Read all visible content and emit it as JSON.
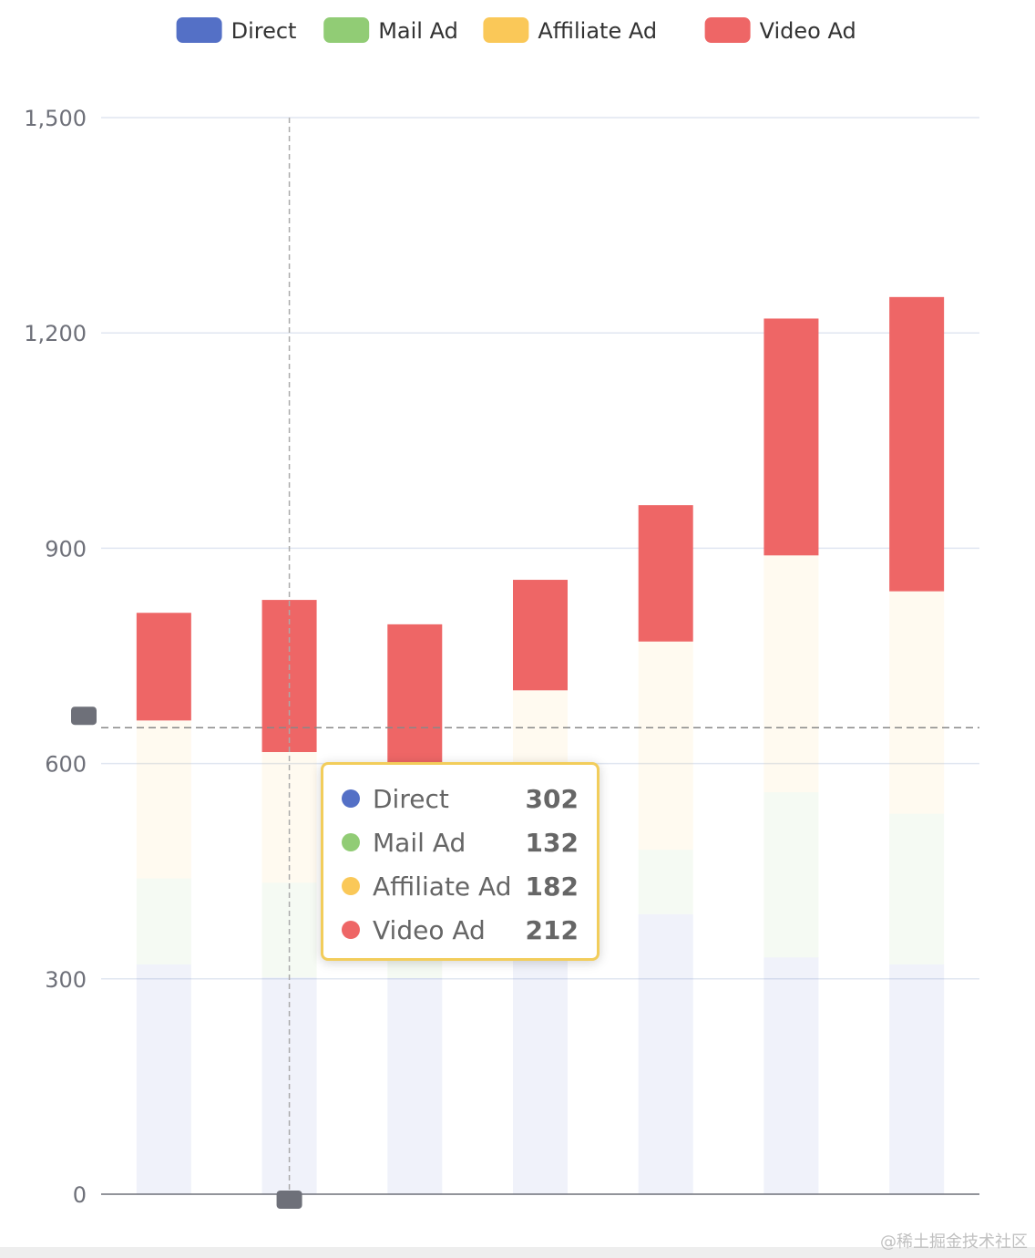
{
  "chart_data": {
    "type": "bar",
    "stacked": true,
    "categories": [
      "",
      "",
      "",
      "",
      "",
      "",
      ""
    ],
    "series": [
      {
        "name": "Direct",
        "color": "#5470c6",
        "values": [
          320,
          302,
          301,
          334,
          390,
          330,
          320
        ]
      },
      {
        "name": "Mail Ad",
        "color": "#91cc75",
        "values": [
          120,
          132,
          101,
          134,
          90,
          230,
          210
        ]
      },
      {
        "name": "Affiliate Ad",
        "color": "#fac858",
        "values": [
          220,
          182,
          191,
          234,
          290,
          330,
          310
        ]
      },
      {
        "name": "Video Ad",
        "color": "#ee6666",
        "values": [
          150,
          212,
          201,
          154,
          190,
          330,
          410
        ]
      }
    ],
    "ylim": [
      0,
      1500
    ],
    "yticks": [
      "0",
      "300",
      "600",
      "900",
      "1,200",
      "1,500"
    ],
    "ytick_values": [
      0,
      300,
      600,
      900,
      1200,
      1500
    ],
    "grid": true,
    "legend_position": "top-center",
    "emphasis": {
      "focus": "series",
      "highlighted_series": "Video Ad",
      "hovered_category_index": 1
    },
    "crosshair_y_value": 650
  },
  "tooltip": {
    "rows": [
      {
        "name": "Direct",
        "value": "302",
        "color": "#5470c6"
      },
      {
        "name": "Mail Ad",
        "value": "132",
        "color": "#91cc75"
      },
      {
        "name": "Affiliate Ad",
        "value": "182",
        "color": "#fac858"
      },
      {
        "name": "Video Ad",
        "value": "212",
        "color": "#ee6666"
      }
    ]
  },
  "watermark": "@稀土掘金技术社区"
}
